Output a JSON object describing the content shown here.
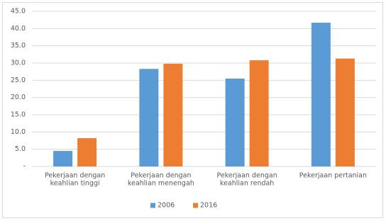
{
  "chart_data": {
    "type": "bar",
    "categories": [
      [
        "Pekerjaan dengan",
        "keahlian tinggi"
      ],
      [
        "Pekerjaan dengan",
        "keahlian menengah"
      ],
      [
        "Pekerjaan dengan",
        "keahlian rendah"
      ],
      [
        "Pekerjaan pertanian"
      ]
    ],
    "series": [
      {
        "name": "2006",
        "color": "#5b9bd5",
        "values": [
          4.5,
          28.3,
          25.5,
          41.7
        ]
      },
      {
        "name": "2016",
        "color": "#ed7d31",
        "values": [
          8.2,
          29.8,
          30.8,
          31.3
        ]
      }
    ],
    "ylim": [
      0,
      45
    ],
    "yticks": [
      {
        "value": 0,
        "label": "-"
      },
      {
        "value": 5,
        "label": "5.0"
      },
      {
        "value": 10,
        "label": "10.0"
      },
      {
        "value": 15,
        "label": "15.0"
      },
      {
        "value": 20,
        "label": "20.0"
      },
      {
        "value": 25,
        "label": "25.0"
      },
      {
        "value": 30,
        "label": "30.0"
      },
      {
        "value": 35,
        "label": "35.0"
      },
      {
        "value": 40,
        "label": "40.0"
      },
      {
        "value": 45,
        "label": "45.0"
      }
    ],
    "grid": true,
    "legend": "bottom"
  }
}
